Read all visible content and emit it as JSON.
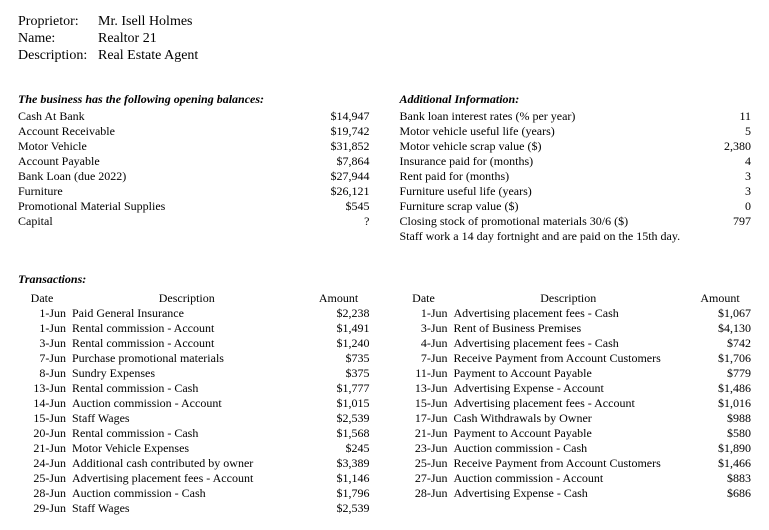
{
  "header": {
    "proprietor_label": "Proprietor:",
    "proprietor_value": "Mr. Isell Holmes",
    "name_label": "Name:",
    "name_value": "Realtor 21",
    "description_label": "Description:",
    "description_value": "Real Estate Agent"
  },
  "opening": {
    "title": "The business has the following opening balances:",
    "items": [
      {
        "label": "Cash At Bank",
        "amount": "$14,947"
      },
      {
        "label": "Account Receivable",
        "amount": "$19,742"
      },
      {
        "label": "Motor Vehicle",
        "amount": "$31,852"
      },
      {
        "label": "Account Payable",
        "amount": "$7,864"
      },
      {
        "label": "Bank Loan (due 2022)",
        "amount": "$27,944"
      },
      {
        "label": "Furniture",
        "amount": "$26,121"
      },
      {
        "label": "Promotional Material Supplies",
        "amount": "$545"
      },
      {
        "label": "Capital",
        "amount": "?"
      }
    ]
  },
  "additional": {
    "title": "Additional Information:",
    "items": [
      {
        "label": "Bank loan interest rates (% per year)",
        "amount": "11"
      },
      {
        "label": "Motor vehicle useful life (years)",
        "amount": "5"
      },
      {
        "label": "Motor vehicle scrap value ($)",
        "amount": "2,380"
      },
      {
        "label": "Insurance paid for (months)",
        "amount": "4"
      },
      {
        "label": "Rent paid for (months)",
        "amount": "3"
      },
      {
        "label": "Furniture useful life (years)",
        "amount": "3"
      },
      {
        "label": "Furniture scrap value ($)",
        "amount": "0"
      },
      {
        "label": "Closing stock of promotional materials 30/6 ($)",
        "amount": "797"
      },
      {
        "label": "Staff work a 14 day fortnight and are paid on the 15th day.",
        "amount": ""
      }
    ]
  },
  "transactions": {
    "title": "Transactions:",
    "headers": {
      "date": "Date",
      "desc": "Description",
      "amount": "Amount"
    },
    "left": [
      {
        "date": "1-Jun",
        "desc": "Paid General Insurance",
        "amount": "$2,238"
      },
      {
        "date": "1-Jun",
        "desc": "Rental commission - Account",
        "amount": "$1,491"
      },
      {
        "date": "3-Jun",
        "desc": "Rental commission - Account",
        "amount": "$1,240"
      },
      {
        "date": "7-Jun",
        "desc": "Purchase promotional materials",
        "amount": "$735"
      },
      {
        "date": "8-Jun",
        "desc": "Sundry Expenses",
        "amount": "$375"
      },
      {
        "date": "13-Jun",
        "desc": "Rental commission - Cash",
        "amount": "$1,777"
      },
      {
        "date": "14-Jun",
        "desc": "Auction commission - Account",
        "amount": "$1,015"
      },
      {
        "date": "15-Jun",
        "desc": "Staff Wages",
        "amount": "$2,539"
      },
      {
        "date": "20-Jun",
        "desc": "Rental commission - Cash",
        "amount": "$1,568"
      },
      {
        "date": "21-Jun",
        "desc": "Motor Vehicle Expenses",
        "amount": "$245"
      },
      {
        "date": "24-Jun",
        "desc": "Additional cash contributed by owner",
        "amount": "$3,389"
      },
      {
        "date": "25-Jun",
        "desc": "Advertising placement fees - Account",
        "amount": "$1,146"
      },
      {
        "date": "28-Jun",
        "desc": "Auction commission - Cash",
        "amount": "$1,796"
      },
      {
        "date": "29-Jun",
        "desc": "Staff Wages",
        "amount": "$2,539"
      }
    ],
    "right": [
      {
        "date": "1-Jun",
        "desc": "Advertising placement fees - Cash",
        "amount": "$1,067"
      },
      {
        "date": "3-Jun",
        "desc": "Rent of Business Premises",
        "amount": "$4,130"
      },
      {
        "date": "4-Jun",
        "desc": "Advertising placement fees - Cash",
        "amount": "$742"
      },
      {
        "date": "7-Jun",
        "desc": "Receive Payment from Account Customers",
        "amount": "$1,706"
      },
      {
        "date": "11-Jun",
        "desc": "Payment to Account Payable",
        "amount": "$779"
      },
      {
        "date": "13-Jun",
        "desc": "Advertising Expense - Account",
        "amount": "$1,486"
      },
      {
        "date": "15-Jun",
        "desc": "Advertising placement fees - Account",
        "amount": "$1,016"
      },
      {
        "date": "17-Jun",
        "desc": "Cash Withdrawals by Owner",
        "amount": "$988"
      },
      {
        "date": "21-Jun",
        "desc": "Payment to Account Payable",
        "amount": "$580"
      },
      {
        "date": "23-Jun",
        "desc": "Auction commission - Cash",
        "amount": "$1,890"
      },
      {
        "date": "25-Jun",
        "desc": "Receive Payment from Account Customers",
        "amount": "$1,466"
      },
      {
        "date": "27-Jun",
        "desc": "Auction commission - Account",
        "amount": "$883"
      },
      {
        "date": "28-Jun",
        "desc": "Advertising Expense - Cash",
        "amount": "$686"
      }
    ]
  }
}
